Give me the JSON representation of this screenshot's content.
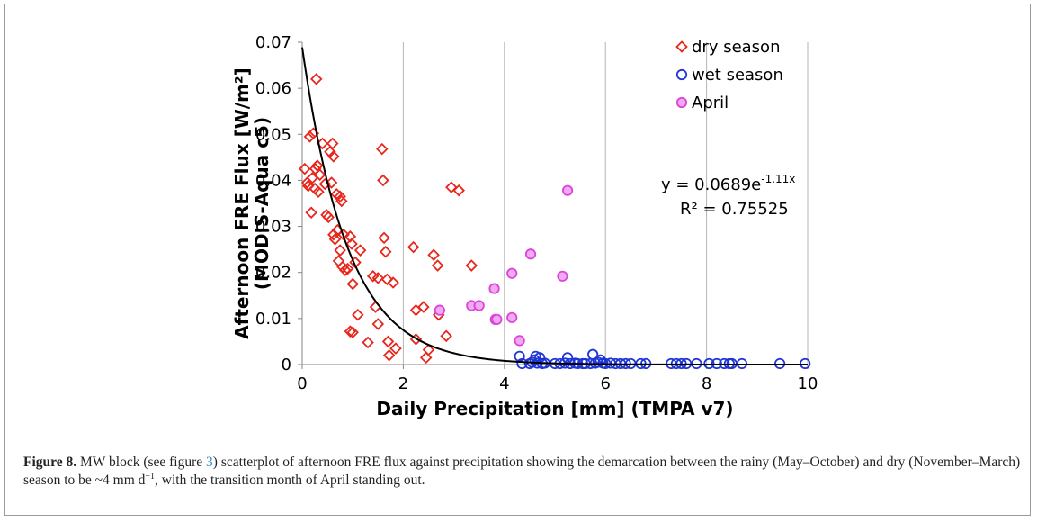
{
  "chart_data": {
    "type": "scatter",
    "xlabel": "Daily Precipitation [mm] (TMPA v7)",
    "ylabel_line1": "Afternoon FRE Flux [W/m²]",
    "ylabel_line2": "(MODIS-Aqua c5)",
    "xlim": [
      0,
      10
    ],
    "ylim": [
      0,
      0.07
    ],
    "x_ticks": [
      0,
      2,
      4,
      6,
      8,
      10
    ],
    "x_tick_labels": [
      "0",
      "2",
      "4",
      "6",
      "8",
      "10"
    ],
    "y_ticks": [
      0,
      0.01,
      0.02,
      0.03,
      0.04,
      0.05,
      0.06,
      0.07
    ],
    "y_tick_labels": [
      "0",
      "0.01",
      "0.02",
      "0.03",
      "0.04",
      "0.05",
      "0.06",
      "0.07"
    ],
    "grid": "vertical",
    "legend_position": "top-right",
    "series": [
      {
        "name": "dry season",
        "marker": "diamond",
        "color": "#e8261c",
        "points": [
          [
            0.05,
            0.0425
          ],
          [
            0.1,
            0.0395
          ],
          [
            0.12,
            0.0388
          ],
          [
            0.15,
            0.0495
          ],
          [
            0.18,
            0.033
          ],
          [
            0.2,
            0.0405
          ],
          [
            0.22,
            0.0502
          ],
          [
            0.25,
            0.0382
          ],
          [
            0.26,
            0.0425
          ],
          [
            0.28,
            0.062
          ],
          [
            0.3,
            0.0432
          ],
          [
            0.32,
            0.0375
          ],
          [
            0.35,
            0.0412
          ],
          [
            0.4,
            0.048
          ],
          [
            0.45,
            0.0392
          ],
          [
            0.48,
            0.0325
          ],
          [
            0.52,
            0.032
          ],
          [
            0.55,
            0.0462
          ],
          [
            0.58,
            0.0395
          ],
          [
            0.6,
            0.048
          ],
          [
            0.62,
            0.0452
          ],
          [
            0.62,
            0.0282
          ],
          [
            0.65,
            0.0272
          ],
          [
            0.68,
            0.037
          ],
          [
            0.7,
            0.0292
          ],
          [
            0.72,
            0.0225
          ],
          [
            0.75,
            0.0248
          ],
          [
            0.75,
            0.0365
          ],
          [
            0.78,
            0.0355
          ],
          [
            0.8,
            0.0212
          ],
          [
            0.82,
            0.0282
          ],
          [
            0.85,
            0.0205
          ],
          [
            0.9,
            0.0208
          ],
          [
            0.95,
            0.0072
          ],
          [
            0.95,
            0.0278
          ],
          [
            0.98,
            0.0262
          ],
          [
            1.0,
            0.007
          ],
          [
            1.0,
            0.0175
          ],
          [
            1.05,
            0.0222
          ],
          [
            1.1,
            0.0108
          ],
          [
            1.15,
            0.0248
          ],
          [
            1.3,
            0.0048
          ],
          [
            1.4,
            0.0192
          ],
          [
            1.45,
            0.0125
          ],
          [
            1.5,
            0.0088
          ],
          [
            1.5,
            0.0188
          ],
          [
            1.58,
            0.0468
          ],
          [
            1.6,
            0.04
          ],
          [
            1.62,
            0.0275
          ],
          [
            1.65,
            0.0245
          ],
          [
            1.68,
            0.0185
          ],
          [
            1.7,
            0.005
          ],
          [
            1.72,
            0.002
          ],
          [
            1.8,
            0.0178
          ],
          [
            1.85,
            0.0035
          ],
          [
            2.2,
            0.0255
          ],
          [
            2.25,
            0.0118
          ],
          [
            2.25,
            0.0055
          ],
          [
            2.4,
            0.0125
          ],
          [
            2.45,
            0.0015
          ],
          [
            2.5,
            0.0032
          ],
          [
            2.6,
            0.0238
          ],
          [
            2.68,
            0.0215
          ],
          [
            2.7,
            0.0108
          ],
          [
            2.85,
            0.0062
          ],
          [
            2.95,
            0.0385
          ],
          [
            3.1,
            0.0378
          ],
          [
            3.35,
            0.0215
          ]
        ]
      },
      {
        "name": "wet season",
        "marker": "circle",
        "color": "#1f35d6",
        "points": [
          [
            4.3,
            0.0018
          ],
          [
            4.35,
            0.0002
          ],
          [
            4.5,
            0.0002
          ],
          [
            4.55,
            0.0005
          ],
          [
            4.6,
            0.001
          ],
          [
            4.62,
            0.0018
          ],
          [
            4.65,
            0.0003
          ],
          [
            4.7,
            0.0015
          ],
          [
            4.75,
            0.0002
          ],
          [
            4.8,
            0.0003
          ],
          [
            5.0,
            0.0002
          ],
          [
            5.1,
            0.0002
          ],
          [
            5.2,
            0.0003
          ],
          [
            5.25,
            0.0015
          ],
          [
            5.3,
            0.0002
          ],
          [
            5.4,
            0.0003
          ],
          [
            5.45,
            0.0002
          ],
          [
            5.55,
            0.0002
          ],
          [
            5.6,
            0.0002
          ],
          [
            5.7,
            0.0002
          ],
          [
            5.75,
            0.0022
          ],
          [
            5.8,
            0.0003
          ],
          [
            5.85,
            0.0005
          ],
          [
            5.9,
            0.001
          ],
          [
            5.95,
            0.0003
          ],
          [
            6.0,
            0.0002
          ],
          [
            6.1,
            0.0003
          ],
          [
            6.2,
            0.0002
          ],
          [
            6.3,
            0.0002
          ],
          [
            6.4,
            0.0002
          ],
          [
            6.5,
            0.0002
          ],
          [
            6.7,
            0.0002
          ],
          [
            6.8,
            0.0002
          ],
          [
            7.3,
            0.0002
          ],
          [
            7.4,
            0.0002
          ],
          [
            7.5,
            0.0002
          ],
          [
            7.6,
            0.0002
          ],
          [
            7.8,
            0.0002
          ],
          [
            8.05,
            0.0002
          ],
          [
            8.2,
            0.0002
          ],
          [
            8.35,
            0.0002
          ],
          [
            8.45,
            0.0002
          ],
          [
            8.5,
            0.0002
          ],
          [
            8.7,
            0.0002
          ],
          [
            9.45,
            0.0002
          ],
          [
            9.95,
            0.0002
          ]
        ]
      },
      {
        "name": "April",
        "marker": "circle",
        "color": "#d946d9",
        "points": [
          [
            2.72,
            0.0118
          ],
          [
            3.35,
            0.0128
          ],
          [
            3.5,
            0.0128
          ],
          [
            3.8,
            0.0165
          ],
          [
            3.82,
            0.0098
          ],
          [
            3.85,
            0.0098
          ],
          [
            4.15,
            0.0102
          ],
          [
            4.15,
            0.0198
          ],
          [
            4.3,
            0.0052
          ],
          [
            4.52,
            0.024
          ],
          [
            5.15,
            0.0192
          ],
          [
            5.25,
            0.0378
          ]
        ]
      }
    ],
    "trendline": {
      "type": "exponential",
      "a": 0.0689,
      "b": -1.11,
      "color": "#000000",
      "equation_prefix": "y = 0.0689e",
      "equation_exponent": "-1.11x",
      "r2_text": "R² = 0.75525"
    }
  },
  "caption": {
    "label": "Figure 8.",
    "text_1": " MW block (see figure ",
    "ref": "3",
    "text_2": ") scatterplot of afternoon FRE flux against precipitation showing the demarcation between the rainy (May–October) and dry (November–March) season to be ~4 mm d",
    "sup": "−1",
    "text_3": ", with the transition month of April standing out."
  }
}
